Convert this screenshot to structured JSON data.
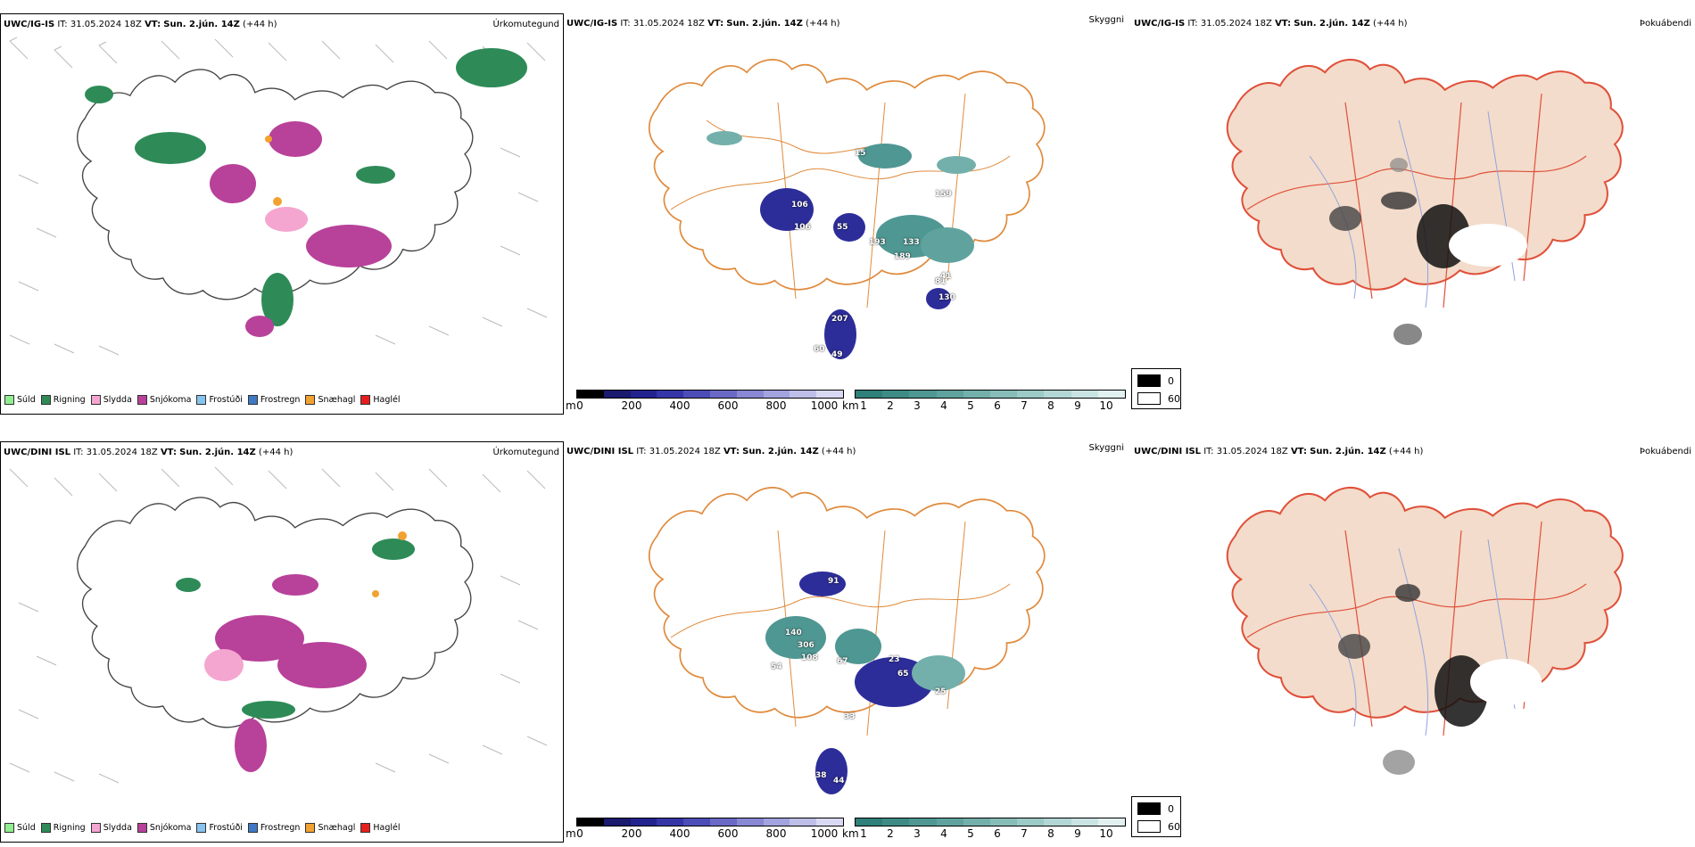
{
  "rows": [
    {
      "precip": {
        "model": "UWC/IG-IS",
        "it": "IT: 31.05.2024 18Z",
        "vt_label": "VT:",
        "vt": "Sun. 2.jún. 14Z",
        "lead": "(+44 h)",
        "label": "Úrkomutegund"
      },
      "vis": {
        "model": "UWC/IG-IS",
        "it": "IT: 31.05.2024 18Z",
        "vt_label": "VT:",
        "vt": "Sun. 2.jún. 14Z",
        "lead": "(+44 h)",
        "label": "Skyggni",
        "cloud_values": [
          "106",
          "106",
          "55",
          "193",
          "133",
          "189",
          "81",
          "130",
          "207",
          "49",
          "60",
          "15",
          "159",
          "41"
        ]
      },
      "fog": {
        "model": "UWC/IG-IS",
        "it": "IT: 31.05.2024 18Z",
        "vt_label": "VT:",
        "vt": "Sun. 2.jún. 14Z",
        "lead": "(+44 h)",
        "label": "Þokuábendi"
      }
    },
    {
      "precip": {
        "model": "UWC/DINI ISL",
        "it": "IT: 31.05.2024 18Z",
        "vt_label": "VT:",
        "vt": "Sun. 2.jún. 14Z",
        "lead": "(+44 h)",
        "label": "Úrkomutegund"
      },
      "vis": {
        "model": "UWC/DINI ISL",
        "it": "IT: 31.05.2024 18Z",
        "vt_label": "VT:",
        "vt": "Sun. 2.jún. 14Z",
        "lead": "(+44 h)",
        "label": "Skyggni",
        "cloud_values": [
          "91",
          "140",
          "306",
          "108",
          "67",
          "23",
          "65",
          "33",
          "44",
          "38",
          "54",
          "25"
        ]
      },
      "fog": {
        "model": "UWC/DINI ISL",
        "it": "IT: 31.05.2024 18Z",
        "vt_label": "VT:",
        "vt": "Sun. 2.jún. 14Z",
        "lead": "(+44 h)",
        "label": "Þokuábendi"
      }
    }
  ],
  "precip_legend": [
    {
      "label": "Súld",
      "color": "#90ee90"
    },
    {
      "label": "Rigning",
      "color": "#2e8b57"
    },
    {
      "label": "Slydda",
      "color": "#f4a6d0"
    },
    {
      "label": "Snjókoma",
      "color": "#b8419a"
    },
    {
      "label": "Frostúði",
      "color": "#87c3ee"
    },
    {
      "label": "Frostregn",
      "color": "#3f79c4"
    },
    {
      "label": "Snæhagl",
      "color": "#f2a230"
    },
    {
      "label": "Haglél",
      "color": "#e61e1e"
    }
  ],
  "ceiling_bar": {
    "unit": "m",
    "ticks": [
      "0",
      "200",
      "400",
      "600",
      "800",
      "1000"
    ],
    "colors": [
      "#000000",
      "#1a1a6e",
      "#23238f",
      "#3535a8",
      "#4d4db7",
      "#6a6ac6",
      "#8888d4",
      "#a3a3df",
      "#bebee9",
      "#d9d9f3"
    ]
  },
  "visibility_bar": {
    "unit": "km",
    "ticks": [
      "1",
      "2",
      "3",
      "4",
      "5",
      "6",
      "7",
      "8",
      "9",
      "10"
    ],
    "colors": [
      "#2f7f7a",
      "#3e8b86",
      "#4f9792",
      "#60a39e",
      "#73b0ab",
      "#87bdb8",
      "#9ccac6",
      "#b2d7d4",
      "#c9e4e2",
      "#e1f1f0"
    ]
  },
  "fog_legend": {
    "values": [
      "0",
      "60"
    ],
    "colors": [
      "#000000",
      "#ffffff"
    ]
  }
}
